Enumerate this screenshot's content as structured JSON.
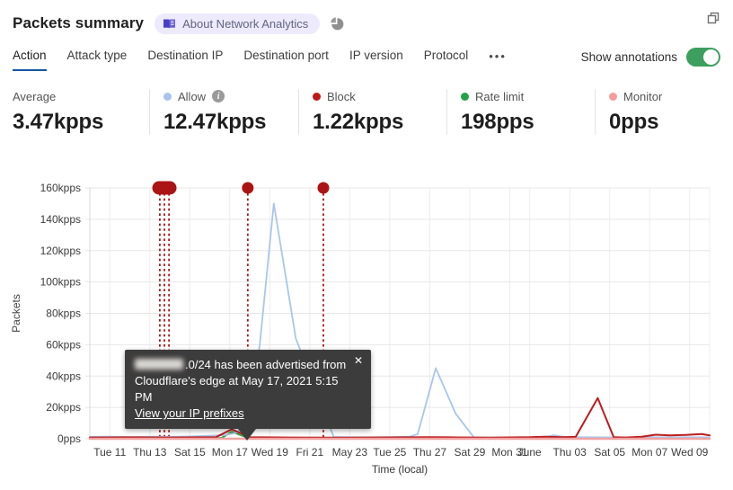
{
  "header": {
    "title": "Packets summary",
    "badge_label": "About Network Analytics"
  },
  "tabs": {
    "items": [
      "Action",
      "Attack type",
      "Destination IP",
      "Destination port",
      "IP version",
      "Protocol"
    ],
    "active_index": 0,
    "more_label": "•••"
  },
  "annotations_toggle": {
    "label": "Show annotations",
    "state": "on",
    "on_color": "#3d9f5f"
  },
  "stats": {
    "columns": [
      {
        "label": "Average",
        "value": "3.47kpps"
      },
      {
        "label": "Allow",
        "value": "12.47kpps",
        "dot_color": "#a9c4e9",
        "dot_style": "background:#a9c4e9",
        "has_info": true,
        "info_glyph": "i"
      },
      {
        "label": "Block",
        "value": "1.22kpps",
        "dot_color": "#c11717",
        "dot_style": "background:#c11717"
      },
      {
        "label": "Rate limit",
        "value": "198pps",
        "dot_color": "#23a14b",
        "dot_style": "background:#23a14b"
      },
      {
        "label": "Monitor",
        "value": "0pps",
        "dot_color": "#f59c9c",
        "dot_style": "background:#f59c9c"
      }
    ]
  },
  "tooltip": {
    "line1_suffix": ".0/24 has been advertised from",
    "line2": "Cloudflare's edge at May 17, 2021 5:15 PM",
    "link_label": "View your IP prefixes",
    "close_label": "✕"
  },
  "chart_data": {
    "type": "line",
    "xlabel": "Time (local)",
    "ylabel": "Packets",
    "x_unit": "days since 2021-05-10 (local)",
    "xlim": [
      0,
      31
    ],
    "ylim": [
      0,
      160
    ],
    "grid": true,
    "y_ticks": [
      {
        "v": 0,
        "label": "0pps"
      },
      {
        "v": 20,
        "label": "20kpps"
      },
      {
        "v": 40,
        "label": "40kpps"
      },
      {
        "v": 60,
        "label": "60kpps"
      },
      {
        "v": 80,
        "label": "80kpps"
      },
      {
        "v": 100,
        "label": "100kpps"
      },
      {
        "v": 120,
        "label": "120kpps"
      },
      {
        "v": 140,
        "label": "140kpps"
      },
      {
        "v": 160,
        "label": "160kpps"
      }
    ],
    "x_ticks": [
      {
        "d": 1,
        "label": "Tue 11"
      },
      {
        "d": 3,
        "label": "Thu 13"
      },
      {
        "d": 5,
        "label": "Sat 15"
      },
      {
        "d": 7,
        "label": "Mon 17"
      },
      {
        "d": 9,
        "label": "Wed 19"
      },
      {
        "d": 11,
        "label": "Fri 21"
      },
      {
        "d": 13,
        "label": "May 23"
      },
      {
        "d": 15,
        "label": "Tue 25"
      },
      {
        "d": 17,
        "label": "Thu 27"
      },
      {
        "d": 19,
        "label": "Sat 29"
      },
      {
        "d": 21,
        "label": "Mon 31"
      },
      {
        "d": 22,
        "label": "June"
      },
      {
        "d": 24,
        "label": "Thu 03"
      },
      {
        "d": 26,
        "label": "Sat 05"
      },
      {
        "d": 28,
        "label": "Mon 07"
      },
      {
        "d": 30,
        "label": "Wed 09"
      }
    ],
    "series": [
      {
        "name": "Rate limit",
        "color": "#34a042",
        "width": 2,
        "points": [
          [
            0,
            0.1
          ],
          [
            6.2,
            0.15
          ],
          [
            6.6,
            0.6
          ],
          [
            7.1,
            4.5
          ],
          [
            7.9,
            0.6
          ],
          [
            8.3,
            0.15
          ],
          [
            31,
            0.1
          ]
        ]
      },
      {
        "name": "Allow",
        "color": "#a9c6ec",
        "width": 1.8,
        "points": [
          [
            0,
            1.2
          ],
          [
            1,
            1.4
          ],
          [
            2,
            1.1
          ],
          [
            3,
            1.4
          ],
          [
            4,
            1.2
          ],
          [
            5,
            1.5
          ],
          [
            6,
            1.9
          ],
          [
            6.8,
            2.4
          ],
          [
            7.4,
            4
          ],
          [
            8,
            16
          ],
          [
            8.5,
            60
          ],
          [
            9.2,
            150
          ],
          [
            10.3,
            64
          ],
          [
            12.2,
            1.2
          ],
          [
            13,
            1
          ],
          [
            14,
            1
          ],
          [
            15,
            1.1
          ],
          [
            16,
            1.3
          ],
          [
            16.4,
            3
          ],
          [
            17.3,
            45
          ],
          [
            18.3,
            16
          ],
          [
            19.2,
            1
          ],
          [
            20,
            0.8
          ],
          [
            21,
            0.9
          ],
          [
            22,
            1
          ],
          [
            22.8,
            1.1
          ],
          [
            23.2,
            2.3
          ],
          [
            23.8,
            1
          ],
          [
            25,
            1
          ],
          [
            26,
            0.9
          ],
          [
            27,
            0.9
          ],
          [
            28,
            1
          ],
          [
            29,
            0.9
          ],
          [
            30,
            1
          ],
          [
            31,
            0.9
          ]
        ]
      },
      {
        "name": "Block",
        "color": "#bb1d1d",
        "width": 2,
        "points": [
          [
            0,
            0.8
          ],
          [
            2,
            0.9
          ],
          [
            4,
            0.8
          ],
          [
            6.3,
            1
          ],
          [
            7.1,
            6
          ],
          [
            8,
            1
          ],
          [
            10,
            0.8
          ],
          [
            12,
            0.7
          ],
          [
            14,
            0.8
          ],
          [
            16,
            0.9
          ],
          [
            17,
            1
          ],
          [
            18,
            0.9
          ],
          [
            20,
            0.7
          ],
          [
            22,
            1
          ],
          [
            22.8,
            1.3
          ],
          [
            23.6,
            1
          ],
          [
            24.3,
            1.2
          ],
          [
            25.4,
            26
          ],
          [
            26.2,
            1
          ],
          [
            26.8,
            0.8
          ],
          [
            27.6,
            1.3
          ],
          [
            28.3,
            2.6
          ],
          [
            29,
            2.2
          ],
          [
            29.8,
            2.4
          ],
          [
            30.6,
            3
          ],
          [
            31,
            2.2
          ]
        ]
      },
      {
        "name": "Monitor",
        "color": "#f2a2a2",
        "width": 2.6,
        "points": [
          [
            0,
            0
          ],
          [
            31,
            0
          ]
        ]
      }
    ],
    "annotations": {
      "color": "#ab1414",
      "line_days": [
        3.5,
        3.73,
        3.96,
        7.9,
        11.68
      ],
      "markers": [
        {
          "d": 3.73,
          "type": "pill"
        },
        {
          "d": 7.9,
          "type": "dot"
        },
        {
          "d": 11.68,
          "type": "dot"
        }
      ]
    }
  }
}
